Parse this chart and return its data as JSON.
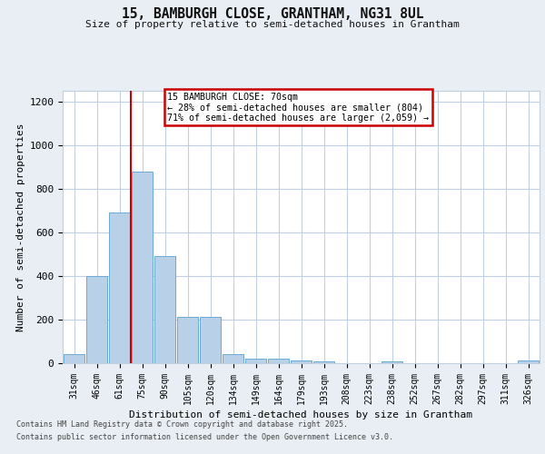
{
  "title_line1": "15, BAMBURGH CLOSE, GRANTHAM, NG31 8UL",
  "title_line2": "Size of property relative to semi-detached houses in Grantham",
  "xlabel": "Distribution of semi-detached houses by size in Grantham",
  "ylabel": "Number of semi-detached properties",
  "categories": [
    "31sqm",
    "46sqm",
    "61sqm",
    "75sqm",
    "90sqm",
    "105sqm",
    "120sqm",
    "134sqm",
    "149sqm",
    "164sqm",
    "179sqm",
    "193sqm",
    "208sqm",
    "223sqm",
    "238sqm",
    "252sqm",
    "267sqm",
    "282sqm",
    "297sqm",
    "311sqm",
    "326sqm"
  ],
  "values": [
    40,
    400,
    693,
    880,
    490,
    213,
    213,
    40,
    20,
    20,
    13,
    7,
    0,
    0,
    7,
    0,
    0,
    0,
    0,
    0,
    13
  ],
  "bar_color": "#b8d0e8",
  "bar_edge_color": "#6aaad4",
  "red_line_x": 2.5,
  "red_line_color": "#cc0000",
  "annotation_text": "15 BAMBURGH CLOSE: 70sqm\n← 28% of semi-detached houses are smaller (804)\n71% of semi-detached houses are larger (2,059) →",
  "annotation_box_color": "#ffffff",
  "annotation_box_edge_color": "#cc0000",
  "ylim": [
    0,
    1250
  ],
  "yticks": [
    0,
    200,
    400,
    600,
    800,
    1000,
    1200
  ],
  "footer_line1": "Contains HM Land Registry data © Crown copyright and database right 2025.",
  "footer_line2": "Contains public sector information licensed under the Open Government Licence v3.0.",
  "bg_color": "#e8eef4",
  "plot_bg_color": "#ffffff",
  "grid_color": "#c0d0e0"
}
